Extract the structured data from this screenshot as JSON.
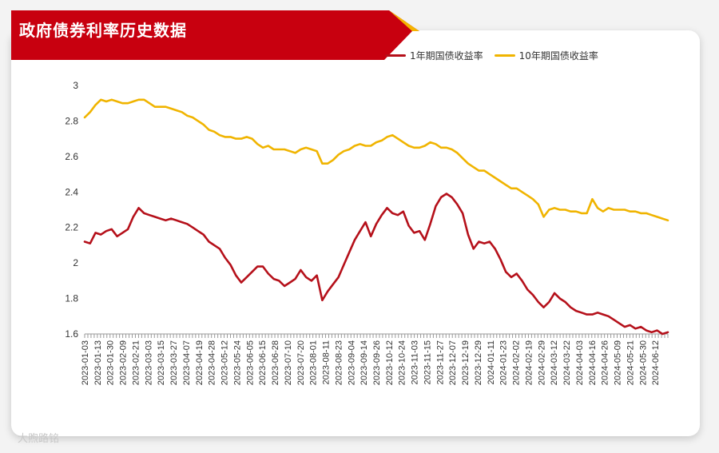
{
  "header": {
    "title": "政府债券利率历史数据"
  },
  "watermark": "大煦路铭",
  "colors": {
    "banner": "#c8000f",
    "accent": "#f5b400",
    "series1": "#b5101a",
    "series2": "#f0b400"
  },
  "chart_data": {
    "type": "line",
    "title": "政府债券利率历史数据",
    "legend_position": "top-right",
    "grid": false,
    "ylim": [
      1.6,
      3.0
    ],
    "y_ticks": [
      "3",
      "2.8",
      "2.6",
      "2.4",
      "2.2",
      "2",
      "1.8",
      "1.6"
    ],
    "x_tick_labels": [
      "2023-01-03",
      "2023-01-13",
      "2023-01-30",
      "2023-02-09",
      "2023-02-21",
      "2023-03-03",
      "2023-03-15",
      "2023-03-27",
      "2023-04-07",
      "2023-04-19",
      "2023-04-28",
      "2023-05-12",
      "2023-05-24",
      "2023-06-05",
      "2023-06-15",
      "2023-06-28",
      "2023-07-10",
      "2023-07-20",
      "2023-08-01",
      "2023-08-11",
      "2023-08-23",
      "2023-09-04",
      "2023-09-14",
      "2023-09-26",
      "2023-10-12",
      "2023-10-24",
      "2023-11-03",
      "2023-11-15",
      "2023-11-27",
      "2023-12-07",
      "2023-12-19",
      "2023-12-29",
      "2024-01-11",
      "2024-01-23",
      "2024-02-02",
      "2024-02-19",
      "2024-02-29",
      "2024-03-12",
      "2024-03-22",
      "2024-04-03",
      "2024-04-16",
      "2024-04-26",
      "2024-05-09",
      "2024-05-21",
      "2024-05-30",
      "2024-06-12"
    ],
    "series": [
      {
        "name": "1年期国债收益率",
        "color": "#b5101a",
        "values": [
          2.12,
          2.11,
          2.17,
          2.16,
          2.18,
          2.19,
          2.15,
          2.17,
          2.19,
          2.26,
          2.31,
          2.28,
          2.27,
          2.26,
          2.25,
          2.24,
          2.25,
          2.24,
          2.23,
          2.22,
          2.2,
          2.18,
          2.16,
          2.12,
          2.1,
          2.08,
          2.03,
          1.99,
          1.93,
          1.89,
          1.92,
          1.95,
          1.98,
          1.98,
          1.94,
          1.91,
          1.9,
          1.87,
          1.89,
          1.91,
          1.96,
          1.92,
          1.9,
          1.93,
          1.79,
          1.84,
          1.88,
          1.92,
          1.99,
          2.06,
          2.13,
          2.18,
          2.23,
          2.15,
          2.22,
          2.27,
          2.31,
          2.28,
          2.27,
          2.29,
          2.21,
          2.17,
          2.18,
          2.13,
          2.22,
          2.32,
          2.37,
          2.39,
          2.37,
          2.33,
          2.28,
          2.16,
          2.08,
          2.12,
          2.11,
          2.12,
          2.08,
          2.02,
          1.95,
          1.92,
          1.94,
          1.9,
          1.85,
          1.82,
          1.78,
          1.75,
          1.78,
          1.83,
          1.8,
          1.78,
          1.75,
          1.73,
          1.72,
          1.71,
          1.71,
          1.72,
          1.71,
          1.7,
          1.68,
          1.66,
          1.64,
          1.65,
          1.63,
          1.64,
          1.62,
          1.61,
          1.62,
          1.6,
          1.61
        ]
      },
      {
        "name": "10年期国债收益率",
        "color": "#f0b400",
        "values": [
          2.82,
          2.85,
          2.89,
          2.92,
          2.91,
          2.92,
          2.91,
          2.9,
          2.9,
          2.91,
          2.92,
          2.92,
          2.9,
          2.88,
          2.88,
          2.88,
          2.87,
          2.86,
          2.85,
          2.83,
          2.82,
          2.8,
          2.78,
          2.75,
          2.74,
          2.72,
          2.71,
          2.71,
          2.7,
          2.7,
          2.71,
          2.7,
          2.67,
          2.65,
          2.66,
          2.64,
          2.64,
          2.64,
          2.63,
          2.62,
          2.64,
          2.65,
          2.64,
          2.63,
          2.56,
          2.56,
          2.58,
          2.61,
          2.63,
          2.64,
          2.66,
          2.67,
          2.66,
          2.66,
          2.68,
          2.69,
          2.71,
          2.72,
          2.7,
          2.68,
          2.66,
          2.65,
          2.65,
          2.66,
          2.68,
          2.67,
          2.65,
          2.65,
          2.64,
          2.62,
          2.59,
          2.56,
          2.54,
          2.52,
          2.52,
          2.5,
          2.48,
          2.46,
          2.44,
          2.42,
          2.42,
          2.4,
          2.38,
          2.36,
          2.33,
          2.26,
          2.3,
          2.31,
          2.3,
          2.3,
          2.29,
          2.29,
          2.28,
          2.28,
          2.36,
          2.31,
          2.29,
          2.31,
          2.3,
          2.3,
          2.3,
          2.29,
          2.29,
          2.28,
          2.28,
          2.27,
          2.26,
          2.25,
          2.24
        ]
      }
    ]
  }
}
